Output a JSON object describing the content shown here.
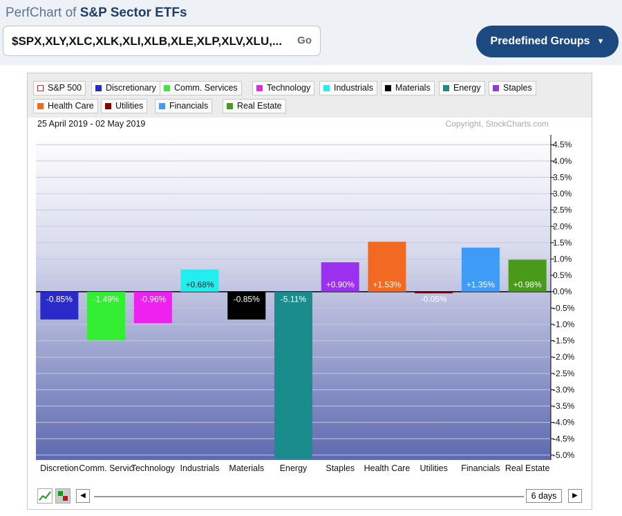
{
  "header": {
    "prefix": "PerfChart of",
    "name": "S&P Sector ETFs"
  },
  "symbols": {
    "value": "$SPX,XLY,XLC,XLK,XLI,XLB,XLE,XLP,XLV,XLU,...",
    "go_label": "Go"
  },
  "predefined": {
    "label": "Predefined Groups",
    "icon": "chevron-down-icon"
  },
  "legend": [
    {
      "label": "S&P 500",
      "color": "#cc2222",
      "outline": true
    },
    {
      "label": "Discretionary",
      "color": "#2a2acb"
    },
    {
      "label": "Comm. Services",
      "color": "#33ee33"
    },
    {
      "label": "Technology",
      "color": "#ee22ee"
    },
    {
      "label": "Industrials",
      "color": "#22eef0"
    },
    {
      "label": "Materials",
      "color": "#000000"
    },
    {
      "label": "Energy",
      "color": "#1a8c8c"
    },
    {
      "label": "Staples",
      "color": "#9b30f0"
    },
    {
      "label": "Health Care",
      "color": "#f26a22"
    },
    {
      "label": "Utilities",
      "color": "#8b0000"
    },
    {
      "label": "Financials",
      "color": "#3e9cf6"
    },
    {
      "label": "Real Estate",
      "color": "#4a9a1a"
    }
  ],
  "chart_data": {
    "type": "bar",
    "date_range": "25 April 2019 - 02 May 2019",
    "copyright": "Copyright, StockCharts.com",
    "categories": [
      "Discretion",
      "Comm. Servic",
      "Technology",
      "Industrials",
      "Materials",
      "Energy",
      "Staples",
      "Health Care",
      "Utilities",
      "Financials",
      "Real Estate"
    ],
    "values": [
      -0.85,
      -1.49,
      -0.96,
      0.68,
      -0.85,
      -5.11,
      0.9,
      1.53,
      -0.05,
      1.35,
      0.98
    ],
    "value_labels": [
      "-0.85%",
      "-1.49%",
      "-0.96%",
      "+0.68%",
      "-0.85%",
      "-5.11%",
      "+0.90%",
      "+1.53%",
      "-0.05%",
      "+1.35%",
      "+0.98%"
    ],
    "colors": [
      "#2a2acb",
      "#33ee33",
      "#ee22ee",
      "#22eef0",
      "#000000",
      "#1a8c8c",
      "#9b30f0",
      "#f26a22",
      "#8b0000",
      "#3e9cf6",
      "#4a9a1a"
    ],
    "ylim": [
      -5.0,
      4.5
    ],
    "yticks": [
      "4.5%",
      "4.0%",
      "3.5%",
      "3.0%",
      "2.5%",
      "2.0%",
      "1.5%",
      "1.0%",
      "0.5%",
      "0.0%",
      "-0.5%",
      "-1.0%",
      "-1.5%",
      "-2.0%",
      "-2.5%",
      "-3.0%",
      "-3.5%",
      "-4.0%",
      "-4.5%",
      "-5.0%"
    ],
    "grid": true,
    "y_axis_position": "right"
  },
  "controls": {
    "period_label": "6 days",
    "prev_icon": "arrow-left-icon",
    "next_icon": "arrow-right-icon"
  }
}
